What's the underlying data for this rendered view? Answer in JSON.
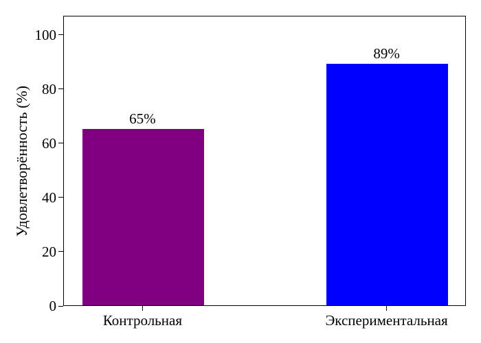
{
  "chart_data": {
    "type": "bar",
    "title": "",
    "categories": [
      "Контрольная",
      "Экспериментальная"
    ],
    "values": [
      65,
      89
    ],
    "value_labels": [
      "65%",
      "89%"
    ],
    "bar_colors": [
      "#800080",
      "#0000ff"
    ],
    "xlabel": "",
    "ylabel": "Удовлетворённость (%)",
    "yticks": [
      0,
      20,
      40,
      60,
      80,
      100
    ],
    "ylim": [
      0,
      107
    ],
    "xlim": [
      -0.325,
      1.325
    ],
    "x_positions": [
      0,
      1
    ],
    "bar_width": 0.5,
    "grid": false,
    "legend_position": "none",
    "background_color": "#ffffff",
    "axis_color": "#000000",
    "text_color": "#000000"
  }
}
